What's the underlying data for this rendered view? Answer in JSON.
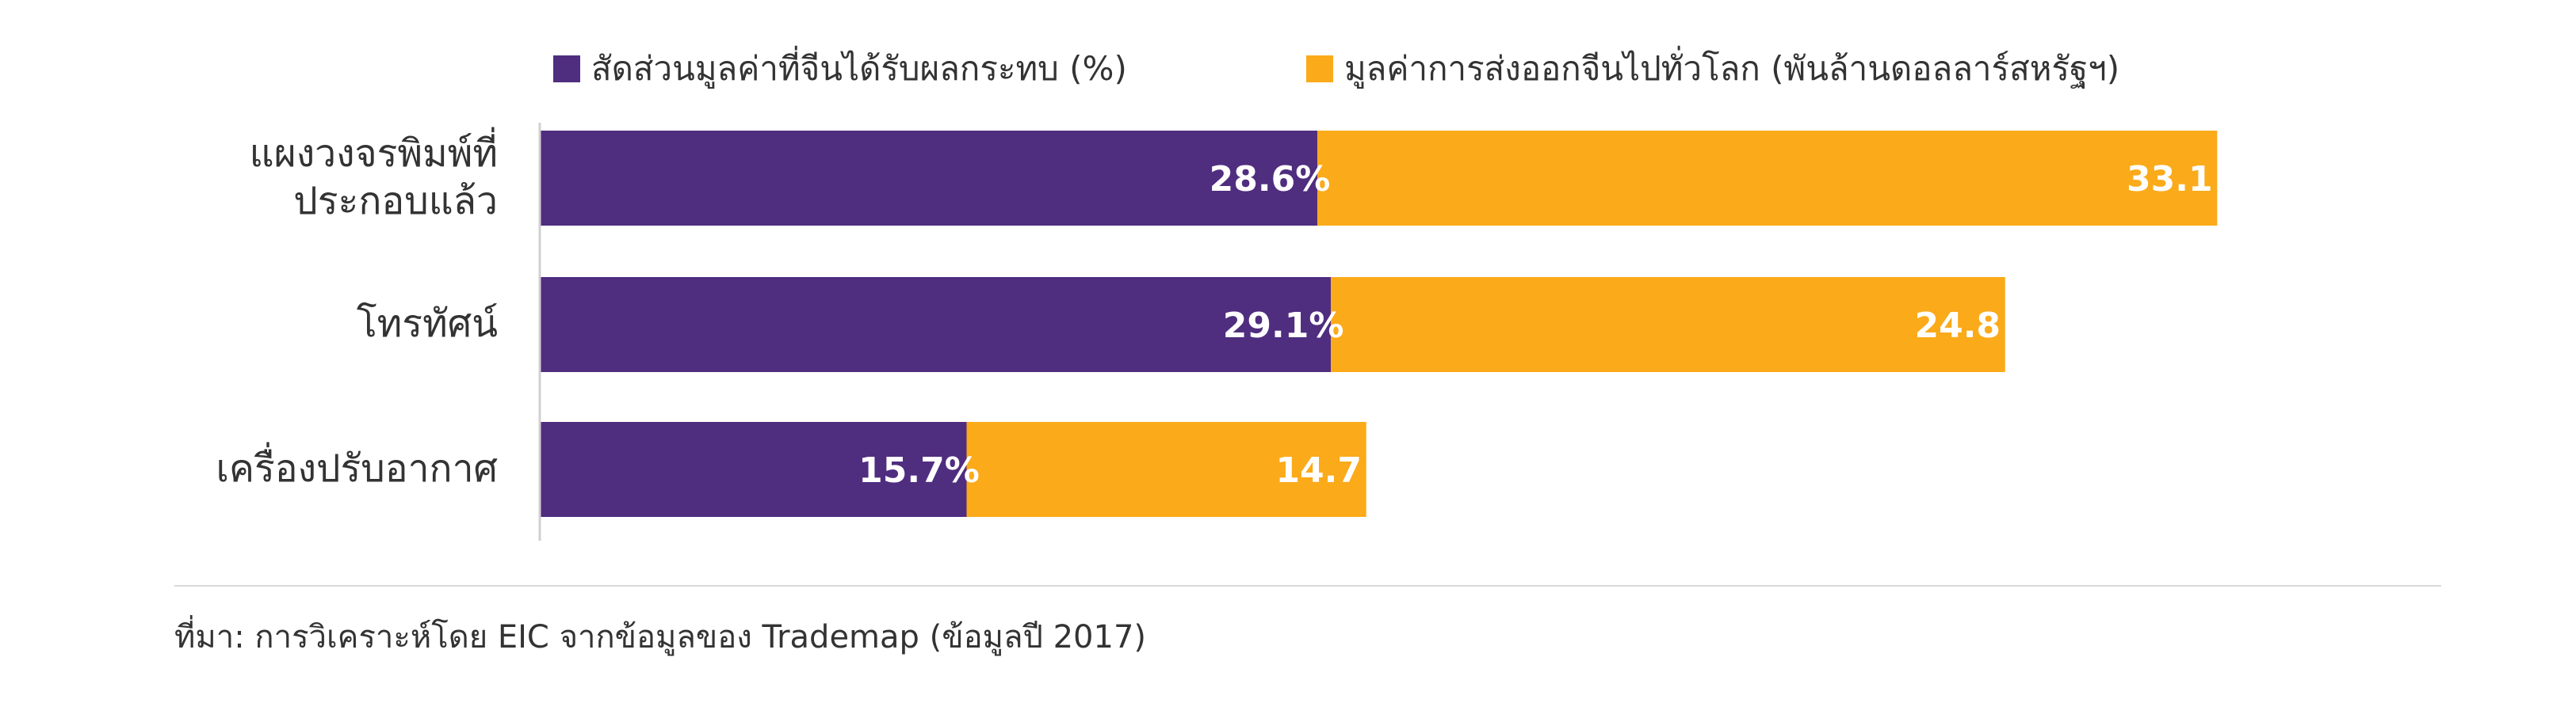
{
  "chart_data": {
    "type": "bar",
    "orientation": "horizontal",
    "stacked": true,
    "categories": [
      [
        "แผงวงจรพิมพ์ที่",
        "ประกอบแล้ว"
      ],
      [
        "โทรทัศน์"
      ],
      [
        "เครื่องปรับอากาศ"
      ]
    ],
    "series": [
      {
        "name": "สัดส่วนมูลค่าที่จีนได้รับผลกระทบ (%)",
        "color": "#4f2d7f",
        "values": [
          28.6,
          29.1,
          15.7
        ],
        "labels": [
          "28.6%",
          "29.1%",
          "15.7%"
        ]
      },
      {
        "name": "มูลค่าการส่งออกจีนไปทั่วโลก (พันล้านดอลลาร์สหรัฐฯ)",
        "color": "#fbaa19",
        "values": [
          33.1,
          24.8,
          14.7
        ],
        "labels": [
          "33.1",
          "24.8",
          "14.7"
        ]
      }
    ],
    "legend_position": "top",
    "grid": false
  },
  "source_note": "ที่มา: การวิเคราะห์โดย EIC จากข้อมูลของ Trademap (ข้อมูลปี 2017)"
}
